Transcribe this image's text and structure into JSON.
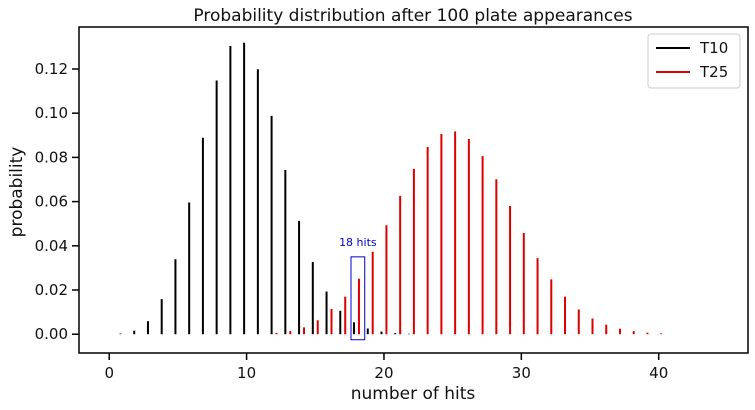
{
  "chart_data": {
    "type": "bar",
    "title": "Probability distribution after 100 plate appearances",
    "xlabel": "number of hits",
    "ylabel": "probability",
    "xlim": [
      -2.2,
      46.5
    ],
    "ylim": [
      -0.0085,
      0.139
    ],
    "xticks": [
      0,
      10,
      20,
      30,
      40
    ],
    "yticks": [
      0.0,
      0.02,
      0.04,
      0.06,
      0.08,
      0.1,
      0.12
    ],
    "ytick_labels": [
      "0.00",
      "0.02",
      "0.04",
      "0.06",
      "0.08",
      "0.10",
      "0.12"
    ],
    "grid": false,
    "legend_position": "top-right",
    "series": [
      {
        "name": "T10",
        "color": "#000000",
        "x": [
          0,
          1,
          2,
          3,
          4,
          5,
          6,
          7,
          8,
          9,
          10,
          11,
          12,
          13,
          14,
          15,
          16,
          17,
          18,
          19,
          20,
          21,
          22
        ],
        "values": [
          0.0,
          0.0003,
          0.0016,
          0.0059,
          0.0159,
          0.0339,
          0.0596,
          0.0889,
          0.1148,
          0.1304,
          0.1319,
          0.1199,
          0.0988,
          0.0743,
          0.0513,
          0.0327,
          0.0193,
          0.0106,
          0.0054,
          0.0026,
          0.0012,
          0.0005,
          0.0002
        ]
      },
      {
        "name": "T25",
        "color": "#dd0000",
        "x": [
          12,
          13,
          14,
          15,
          16,
          17,
          18,
          19,
          20,
          21,
          22,
          23,
          24,
          25,
          26,
          27,
          28,
          29,
          30,
          31,
          32,
          33,
          34,
          35,
          36,
          37,
          38,
          39,
          40
        ],
        "values": [
          0.0006,
          0.0014,
          0.0031,
          0.0063,
          0.0114,
          0.017,
          0.0251,
          0.0373,
          0.0493,
          0.0626,
          0.0748,
          0.0847,
          0.0906,
          0.0918,
          0.0883,
          0.0806,
          0.0701,
          0.058,
          0.0458,
          0.0344,
          0.0248,
          0.017,
          0.0112,
          0.0071,
          0.0043,
          0.0025,
          0.0014,
          0.0007,
          0.0004
        ]
      }
    ],
    "annotation": {
      "text": "18 hits",
      "color": "#0000cc",
      "x_range": [
        17.6,
        18.6
      ],
      "y_range": [
        -0.0025,
        0.035
      ]
    }
  }
}
